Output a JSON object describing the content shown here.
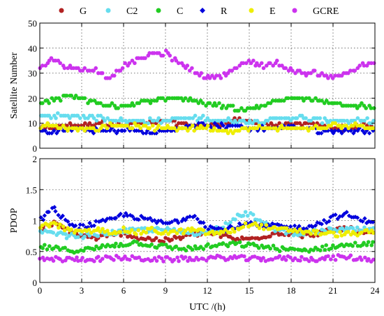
{
  "chart_data": [
    {
      "type": "scatter",
      "title": "",
      "xlabel": "",
      "ylabel": "Satellite Number",
      "xlim": [
        0,
        24
      ],
      "ylim": [
        0,
        50
      ],
      "xticks": [
        "0",
        "3",
        "6",
        "9",
        "12",
        "15",
        "18",
        "21",
        "24"
      ],
      "yticks": [
        "0",
        "10",
        "20",
        "30",
        "40",
        "50"
      ],
      "grid": true,
      "series": [
        {
          "name": "G",
          "color": "#b22222",
          "x": [
            0,
            1,
            2,
            3,
            4,
            5,
            6,
            7,
            8,
            9,
            10,
            11,
            12,
            13,
            14,
            15,
            16,
            17,
            18,
            19,
            20,
            21,
            22,
            23,
            24
          ],
          "values": [
            8,
            8,
            9,
            9,
            10,
            10,
            9,
            10,
            10,
            11,
            10,
            9,
            9,
            10,
            11,
            11,
            10,
            9,
            9,
            10,
            9,
            8,
            8,
            9,
            8
          ]
        },
        {
          "name": "C2",
          "color": "#66ddee",
          "x": [
            0,
            1,
            2,
            3,
            4,
            5,
            6,
            7,
            8,
            9,
            10,
            11,
            12,
            13,
            14,
            15,
            16,
            17,
            18,
            19,
            20,
            21,
            22,
            23,
            24
          ],
          "values": [
            13,
            13,
            13,
            13,
            12,
            12,
            11,
            11,
            11,
            11,
            12,
            12,
            12,
            11,
            11,
            11,
            11,
            12,
            12,
            12,
            11,
            11,
            11,
            11,
            11
          ]
        },
        {
          "name": "C",
          "color": "#22cc22",
          "x": [
            0,
            1,
            2,
            3,
            4,
            5,
            6,
            7,
            8,
            9,
            10,
            11,
            12,
            13,
            14,
            15,
            16,
            17,
            18,
            19,
            20,
            21,
            22,
            23,
            24
          ],
          "values": [
            18,
            19,
            21,
            20,
            18,
            17,
            17,
            18,
            19,
            20,
            20,
            19,
            18,
            17,
            16,
            16,
            17,
            19,
            20,
            20,
            19,
            18,
            17,
            17,
            16
          ]
        },
        {
          "name": "R",
          "color": "#0000dd",
          "x": [
            0,
            1,
            2,
            3,
            4,
            5,
            6,
            7,
            8,
            9,
            10,
            11,
            12,
            13,
            14,
            15,
            16,
            17,
            18,
            19,
            20,
            21,
            22,
            23,
            24
          ],
          "values": [
            6,
            7,
            7,
            8,
            7,
            7,
            7,
            7,
            6,
            7,
            8,
            9,
            9,
            9,
            9,
            8,
            8,
            8,
            9,
            8,
            7,
            7,
            7,
            7,
            7
          ]
        },
        {
          "name": "E",
          "color": "#eeee00",
          "x": [
            0,
            1,
            2,
            3,
            4,
            5,
            6,
            7,
            8,
            9,
            10,
            11,
            12,
            13,
            14,
            15,
            16,
            17,
            18,
            19,
            20,
            21,
            22,
            23,
            24
          ],
          "values": [
            9,
            9,
            8,
            8,
            8,
            9,
            9,
            9,
            8,
            8,
            8,
            8,
            8,
            7,
            7,
            8,
            8,
            8,
            8,
            8,
            8,
            9,
            9,
            9,
            8
          ]
        },
        {
          "name": "GCRE",
          "color": "#cc33ee",
          "x": [
            0,
            1,
            2,
            3,
            4,
            5,
            6,
            7,
            8,
            9,
            10,
            11,
            12,
            13,
            14,
            15,
            16,
            17,
            18,
            19,
            20,
            21,
            22,
            23,
            24
          ],
          "values": [
            32,
            36,
            32,
            32,
            31,
            28,
            33,
            35,
            38,
            38,
            34,
            31,
            28,
            29,
            32,
            35,
            33,
            34,
            31,
            30,
            30,
            28,
            30,
            33,
            34
          ]
        }
      ]
    },
    {
      "type": "scatter",
      "title": "",
      "xlabel": "UTC /(h)",
      "ylabel": "PDOP",
      "xlim": [
        0,
        24
      ],
      "ylim": [
        0,
        2
      ],
      "xticks": [
        "0",
        "3",
        "6",
        "9",
        "12",
        "15",
        "18",
        "21",
        "24"
      ],
      "yticks": [
        "0",
        "0.5",
        "1",
        "1.5",
        "2"
      ],
      "grid": true,
      "series": [
        {
          "name": "G",
          "color": "#b22222",
          "x": [
            0,
            1,
            2,
            3,
            4,
            5,
            6,
            7,
            8,
            9,
            10,
            11,
            12,
            13,
            14,
            15,
            16,
            17,
            18,
            19,
            20,
            21,
            22,
            23,
            24
          ],
          "values": [
            0.85,
            0.95,
            0.85,
            0.75,
            0.72,
            0.75,
            0.8,
            0.72,
            0.7,
            0.68,
            0.72,
            0.78,
            0.8,
            0.76,
            0.7,
            0.7,
            0.75,
            0.8,
            0.8,
            0.75,
            0.8,
            0.85,
            0.88,
            0.8,
            0.8
          ]
        },
        {
          "name": "C2",
          "color": "#66ddee",
          "x": [
            0,
            1,
            2,
            3,
            4,
            5,
            6,
            7,
            8,
            9,
            10,
            11,
            12,
            13,
            14,
            15,
            16,
            17,
            18,
            19,
            20,
            21,
            22,
            23,
            24
          ],
          "values": [
            0.8,
            0.8,
            0.75,
            0.75,
            0.78,
            0.8,
            0.82,
            0.85,
            0.85,
            0.85,
            0.82,
            0.8,
            0.82,
            0.9,
            1.05,
            1.12,
            0.95,
            0.85,
            0.8,
            0.8,
            0.82,
            0.85,
            0.85,
            0.85,
            0.85
          ]
        },
        {
          "name": "C",
          "color": "#22cc22",
          "x": [
            0,
            1,
            2,
            3,
            4,
            5,
            6,
            7,
            8,
            9,
            10,
            11,
            12,
            13,
            14,
            15,
            16,
            17,
            18,
            19,
            20,
            21,
            22,
            23,
            24
          ],
          "values": [
            0.58,
            0.55,
            0.52,
            0.52,
            0.55,
            0.6,
            0.62,
            0.65,
            0.6,
            0.58,
            0.55,
            0.55,
            0.58,
            0.6,
            0.62,
            0.6,
            0.58,
            0.55,
            0.52,
            0.52,
            0.55,
            0.58,
            0.6,
            0.62,
            0.62
          ]
        },
        {
          "name": "R",
          "color": "#0000dd",
          "x": [
            0,
            1,
            2,
            3,
            4,
            5,
            6,
            7,
            8,
            9,
            10,
            11,
            12,
            13,
            14,
            15,
            16,
            17,
            18,
            19,
            20,
            21,
            22,
            23,
            24
          ],
          "values": [
            1.0,
            1.2,
            0.95,
            0.9,
            0.95,
            1.0,
            1.1,
            1.05,
            1.0,
            0.95,
            1.0,
            1.1,
            0.9,
            0.85,
            0.9,
            0.95,
            0.9,
            0.92,
            0.88,
            0.9,
            0.95,
            1.05,
            1.1,
            1.0,
            1.0
          ]
        },
        {
          "name": "E",
          "color": "#eeee00",
          "x": [
            0,
            1,
            2,
            3,
            4,
            5,
            6,
            7,
            8,
            9,
            10,
            11,
            12,
            13,
            14,
            15,
            16,
            17,
            18,
            19,
            20,
            21,
            22,
            23,
            24
          ],
          "values": [
            0.9,
            0.95,
            0.85,
            0.8,
            0.85,
            0.82,
            0.85,
            0.8,
            0.85,
            0.8,
            0.82,
            0.85,
            0.8,
            0.8,
            0.85,
            0.95,
            0.9,
            0.85,
            0.85,
            0.82,
            0.8,
            0.78,
            0.78,
            0.8,
            0.82
          ]
        },
        {
          "name": "GCRE",
          "color": "#cc33ee",
          "x": [
            0,
            1,
            2,
            3,
            4,
            5,
            6,
            7,
            8,
            9,
            10,
            11,
            12,
            13,
            14,
            15,
            16,
            17,
            18,
            19,
            20,
            21,
            22,
            23,
            24
          ],
          "values": [
            0.37,
            0.38,
            0.37,
            0.38,
            0.38,
            0.39,
            0.4,
            0.38,
            0.38,
            0.37,
            0.38,
            0.38,
            0.39,
            0.4,
            0.4,
            0.38,
            0.38,
            0.39,
            0.39,
            0.38,
            0.38,
            0.4,
            0.41,
            0.38,
            0.37
          ]
        }
      ]
    }
  ],
  "legend": [
    {
      "label": "G",
      "color": "#b22222"
    },
    {
      "label": "C2",
      "color": "#66ddee"
    },
    {
      "label": "C",
      "color": "#22cc22"
    },
    {
      "label": "R",
      "color": "#0000dd"
    },
    {
      "label": "E",
      "color": "#eeee00"
    },
    {
      "label": "GCRE",
      "color": "#cc33ee"
    }
  ]
}
